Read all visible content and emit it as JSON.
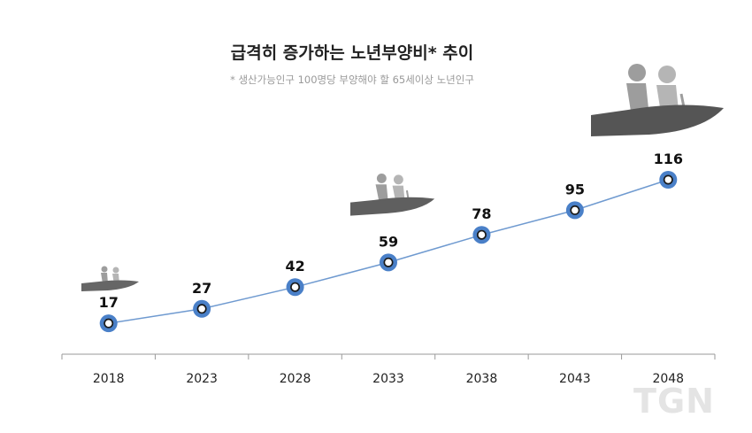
{
  "header": {
    "title": "급격히 증가하는 노년부양비* 추이",
    "subtitle": "* 생산가능인구 100명당 부양해야 할 65세이상 노년인구"
  },
  "chart_data": {
    "type": "line",
    "title": "급격히 증가하는 노년부양비* 추이",
    "subtitle": "* 생산가능인구 100명당 부양해야 할 65세이상 노년인구",
    "categories": [
      "2018",
      "2023",
      "2028",
      "2033",
      "2038",
      "2043",
      "2048"
    ],
    "values": [
      17,
      27,
      42,
      59,
      78,
      95,
      116
    ],
    "xlabel": "",
    "ylabel": "",
    "ylim": [
      0,
      140
    ],
    "grid": false,
    "legend": "none",
    "line_color": "#6f9ad0",
    "marker_color": "#4a80c8"
  },
  "watermark": {
    "text": "TGN"
  },
  "icons": [
    "elderly-hand-icon-small",
    "elderly-hand-icon-medium",
    "elderly-hand-icon-large"
  ]
}
